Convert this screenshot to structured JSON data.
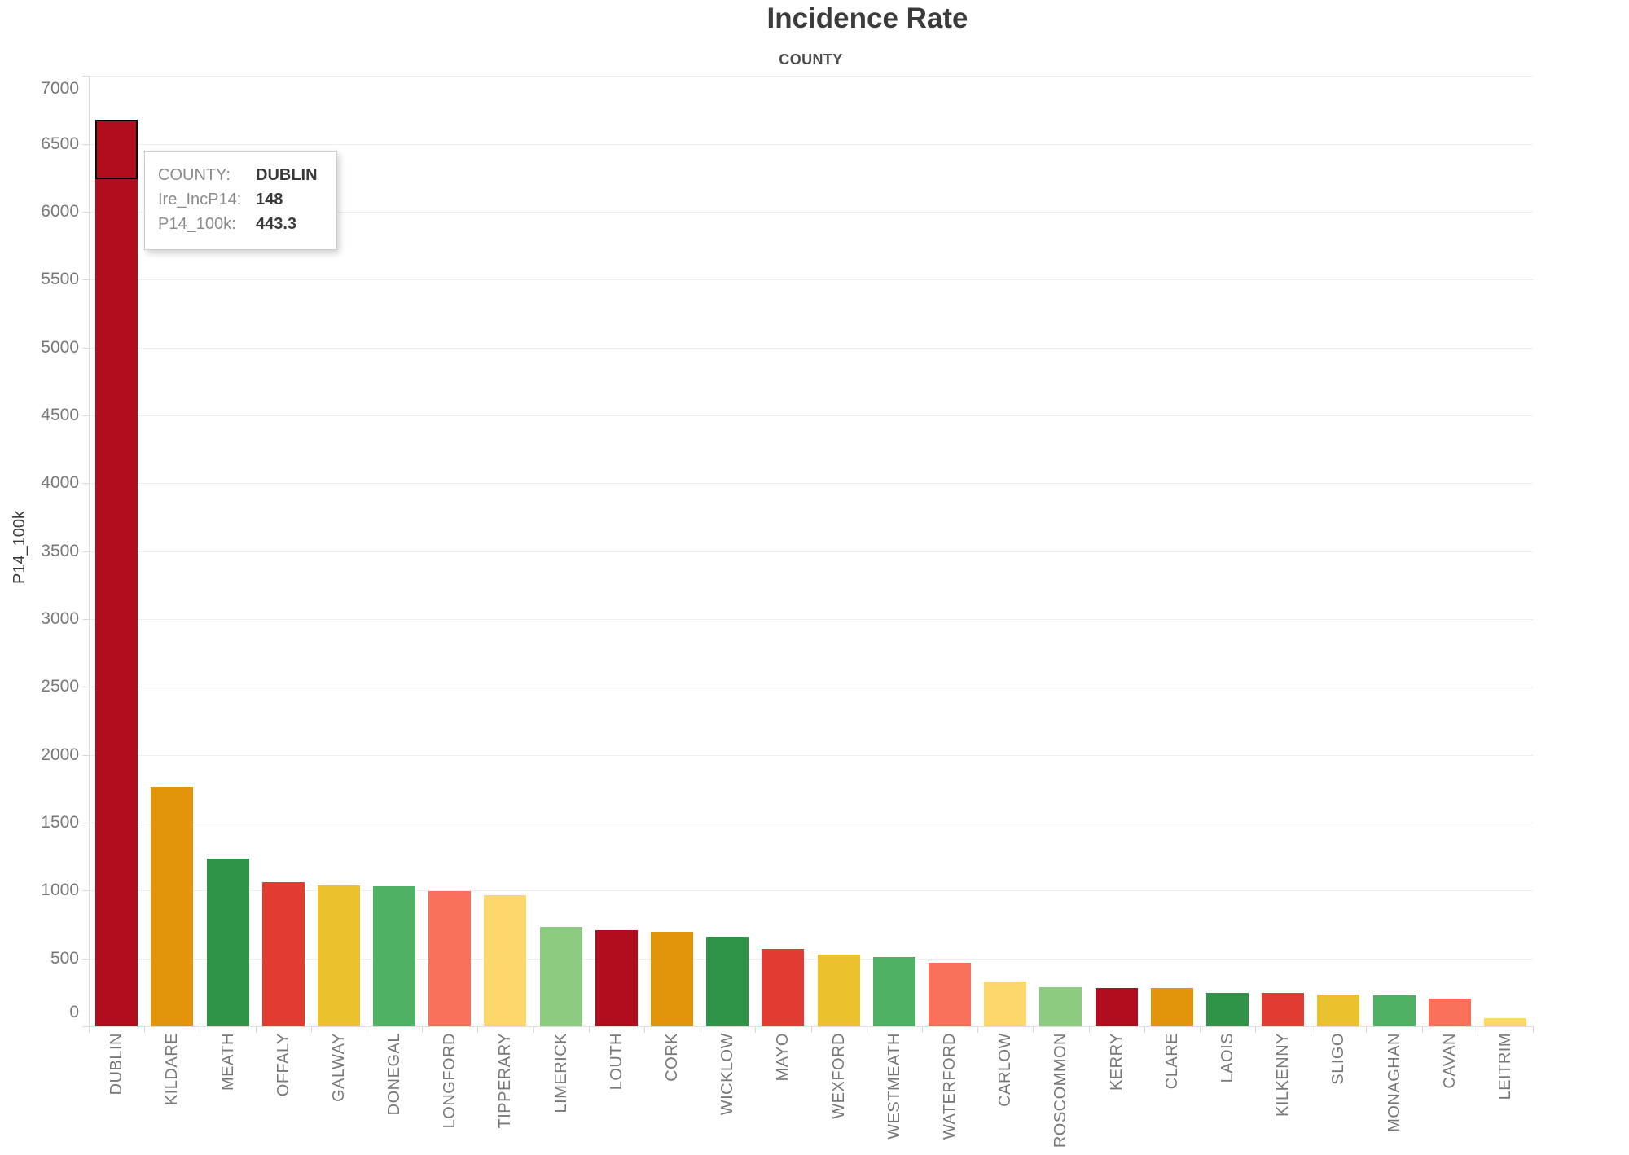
{
  "chart_data": {
    "type": "bar",
    "title": "Incidence Rate",
    "column_header": "COUNTY",
    "xlabel": "COUNTY",
    "ylabel": "P14_100k",
    "ylim": [
      0,
      7000
    ],
    "yticks": [
      0,
      500,
      1000,
      1500,
      2000,
      2500,
      3000,
      3500,
      4000,
      4500,
      5000,
      5500,
      6000,
      6500,
      7000
    ],
    "grid": "horizontal-light",
    "legend": "none",
    "sort_order": "descending by P14_100k",
    "categories": [
      "DUBLIN",
      "KILDARE",
      "MEATH",
      "OFFALY",
      "GALWAY",
      "DONEGAL",
      "LONGFORD",
      "TIPPERARY",
      "LIMERICK",
      "LOUTH",
      "CORK",
      "WICKLOW",
      "MAYO",
      "WEXFORD",
      "WESTMEATH",
      "WATERFORD",
      "CARLOW",
      "ROSCOMMON",
      "KERRY",
      "CLARE",
      "LAOIS",
      "KILKENNY",
      "SLIGO",
      "MONAGHAN",
      "CAVAN",
      "LEITRIM"
    ],
    "values": [
      6680,
      1762,
      1238,
      1065,
      1036,
      1034,
      996,
      964,
      732,
      710,
      696,
      662,
      573,
      531,
      513,
      467,
      331,
      290,
      285,
      281,
      248,
      244,
      236,
      229,
      204,
      60
    ],
    "bar_colors": [
      "#b20d1e",
      "#e2950a",
      "#2f9447",
      "#e23b32",
      "#ecc12e",
      "#50b164",
      "#f9705a",
      "#fcd76c",
      "#8cca7f",
      "#b20d1e",
      "#e2950a",
      "#2f9447",
      "#e23b32",
      "#ecc12e",
      "#50b164",
      "#f9705a",
      "#fcd76c",
      "#8cca7f",
      "#b20d1e",
      "#e2950a",
      "#2f9447",
      "#e23b32",
      "#ecc12e",
      "#50b164",
      "#f9705a",
      "#fcd76c"
    ],
    "palette": {
      "dark_red": "#b20d1e",
      "orange": "#e2950a",
      "forest_green": "#2f9447",
      "red": "#e23b32",
      "gold": "#ecc12e",
      "medium_green": "#50b164",
      "coral": "#f9705a",
      "pale_yellow": "#fcd76c",
      "light_green": "#8cca7f"
    },
    "selected_mark": {
      "category": "DUBLIN",
      "segment_value": 443.3,
      "outline_color": "#000000",
      "Ire_IncP14": 148,
      "P14_100k": 443.3
    }
  },
  "tooltip": {
    "rows": [
      {
        "label": "COUNTY:",
        "value": "DUBLIN"
      },
      {
        "label": "Ire_IncP14:",
        "value": "148"
      },
      {
        "label": "P14_100k:",
        "value": "443.3"
      }
    ]
  },
  "colors": {
    "background": "#ffffff",
    "gridline": "#eeeeee",
    "axis_line": "#d9d9d9",
    "tick_label": "#787878",
    "axis_title": "#3c3c3c",
    "title_text": "#3b3b3b",
    "header_text": "#4d4d4d",
    "tooltip_label": "#8b8b8b",
    "tooltip_value": "#3a3a3a"
  }
}
